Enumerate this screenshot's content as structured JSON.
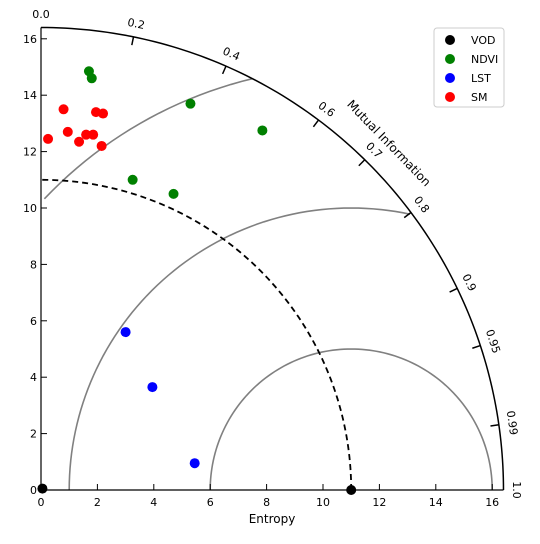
{
  "chart_data": {
    "type": "scatter",
    "xlabel": "Entropy",
    "arc_label": "Mutual Information",
    "radius_max": 16.4,
    "reference_radius": 11,
    "x_ticks": [
      "0",
      "2",
      "4",
      "6",
      "8",
      "10",
      "12",
      "14",
      "16"
    ],
    "y_ticks": [
      "0",
      "2",
      "4",
      "6",
      "8",
      "10",
      "12",
      "14",
      "16"
    ],
    "correlation_ticks": [
      {
        "label": "0.0",
        "value": 0.0
      },
      {
        "label": "0.2",
        "value": 0.2
      },
      {
        "label": "0.4",
        "value": 0.4
      },
      {
        "label": "0.6",
        "value": 0.6
      },
      {
        "label": "0.7",
        "value": 0.7
      },
      {
        "label": "0.8",
        "value": 0.8
      },
      {
        "label": "0.9",
        "value": 0.9
      },
      {
        "label": "0.95",
        "value": 0.95
      },
      {
        "label": "0.99",
        "value": 0.99
      },
      {
        "label": "1.0",
        "value": 1.0
      }
    ],
    "rms_arcs": [
      {
        "radius": 5,
        "start_x": 6.0,
        "end_x": 16.0
      },
      {
        "radius": 10,
        "start_x": 1.0,
        "end_x": 13.15
      },
      {
        "radius": 15,
        "start_x": -4.0,
        "end_x": 7.5
      }
    ],
    "legend_position": "top-right",
    "series": [
      {
        "name": "VOD",
        "color": "#000000",
        "points": [
          [
            0.05,
            0.05
          ],
          [
            11.0,
            0.0
          ]
        ]
      },
      {
        "name": "NDVI",
        "color": "#008000",
        "points": [
          [
            1.7,
            14.85
          ],
          [
            1.8,
            14.6
          ],
          [
            5.3,
            13.7
          ],
          [
            7.85,
            12.75
          ],
          [
            3.25,
            11.0
          ],
          [
            4.7,
            10.5
          ]
        ]
      },
      {
        "name": "LST",
        "color": "#0000ff",
        "points": [
          [
            3.0,
            5.6
          ],
          [
            3.95,
            3.65
          ],
          [
            5.45,
            0.95
          ]
        ]
      },
      {
        "name": "SM",
        "color": "#ff0000",
        "points": [
          [
            0.25,
            12.45
          ],
          [
            0.8,
            13.5
          ],
          [
            0.95,
            12.7
          ],
          [
            1.35,
            12.35
          ],
          [
            1.6,
            12.6
          ],
          [
            1.85,
            12.6
          ],
          [
            1.95,
            13.4
          ],
          [
            2.2,
            13.35
          ],
          [
            2.15,
            12.2
          ]
        ]
      }
    ]
  }
}
